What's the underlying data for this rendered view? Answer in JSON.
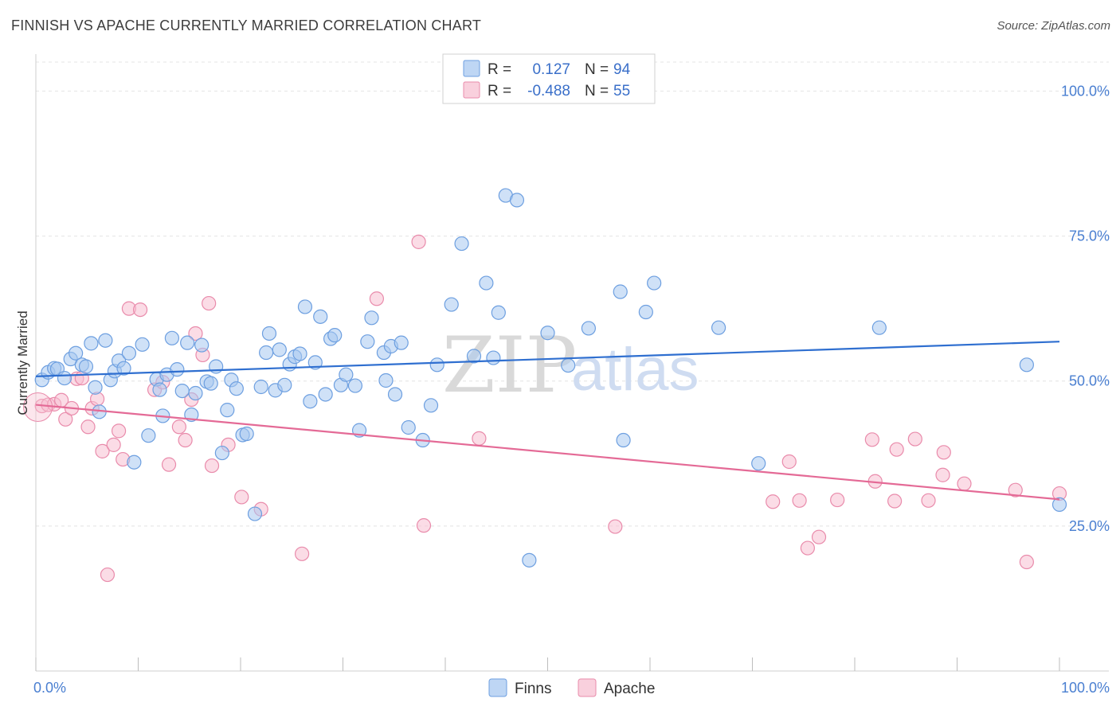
{
  "title": "FINNISH VS APACHE CURRENTLY MARRIED CORRELATION CHART",
  "source": "Source: ZipAtlas.com",
  "watermark": {
    "zip": "ZIP",
    "atlas": "atlas"
  },
  "legend": {
    "r_label": "R =",
    "n_label": "N =",
    "rows": [
      {
        "series": "Finns",
        "r": "0.127",
        "n": "94",
        "color": "#a8c8f0",
        "stroke": "#6d9fe0"
      },
      {
        "series": "Apache",
        "r": "-0.488",
        "n": "55",
        "color": "#f7c0d2",
        "stroke": "#e98bab"
      }
    ]
  },
  "chart_data": {
    "type": "scatter",
    "title": "FINNISH VS APACHE CURRENTLY MARRIED CORRELATION CHART",
    "xlabel": "",
    "ylabel": "Currently Married",
    "xlim": [
      0,
      100
    ],
    "ylim": [
      0,
      105
    ],
    "x_tick_labels": [
      "0.0%",
      "100.0%"
    ],
    "y_ticks": [
      25,
      50,
      75,
      100
    ],
    "y_tick_labels": [
      "25.0%",
      "50.0%",
      "75.0%",
      "100.0%"
    ],
    "grid": true,
    "legend_position": "top-center",
    "series": [
      {
        "name": "Finns",
        "color": "#a8c8f0",
        "stroke": "#6d9fe0",
        "trend": {
          "x": [
            0,
            100
          ],
          "y": [
            50.8,
            56.8
          ],
          "color": "#2f6fd0"
        },
        "points": [
          [
            0.6,
            50.2
          ],
          [
            1.2,
            51.5
          ],
          [
            1.8,
            52.2
          ],
          [
            2.1,
            52.1
          ],
          [
            2.8,
            50.5
          ],
          [
            3.4,
            53.8
          ],
          [
            3.9,
            54.8
          ],
          [
            4.5,
            52.8
          ],
          [
            4.9,
            52.5
          ],
          [
            5.4,
            56.5
          ],
          [
            5.8,
            48.9
          ],
          [
            6.2,
            44.7
          ],
          [
            6.8,
            57.0
          ],
          [
            7.3,
            50.2
          ],
          [
            7.7,
            51.7
          ],
          [
            8.1,
            53.5
          ],
          [
            8.6,
            52.2
          ],
          [
            9.1,
            54.8
          ],
          [
            9.6,
            36.0
          ],
          [
            10.4,
            56.3
          ],
          [
            11.0,
            40.6
          ],
          [
            11.8,
            50.3
          ],
          [
            12.1,
            48.5
          ],
          [
            12.4,
            44.0
          ],
          [
            12.8,
            51.1
          ],
          [
            13.3,
            57.4
          ],
          [
            13.8,
            52.0
          ],
          [
            14.3,
            48.3
          ],
          [
            14.8,
            56.6
          ],
          [
            15.2,
            44.2
          ],
          [
            15.6,
            47.9
          ],
          [
            16.2,
            56.2
          ],
          [
            16.7,
            49.9
          ],
          [
            17.1,
            49.6
          ],
          [
            17.6,
            52.5
          ],
          [
            18.2,
            37.6
          ],
          [
            18.7,
            45.0
          ],
          [
            19.1,
            50.2
          ],
          [
            19.6,
            48.7
          ],
          [
            20.2,
            40.7
          ],
          [
            20.6,
            40.9
          ],
          [
            21.4,
            27.1
          ],
          [
            22.0,
            49.0
          ],
          [
            22.5,
            54.9
          ],
          [
            22.8,
            58.2
          ],
          [
            23.4,
            48.4
          ],
          [
            23.8,
            55.4
          ],
          [
            24.3,
            49.3
          ],
          [
            24.8,
            52.9
          ],
          [
            25.3,
            54.2
          ],
          [
            25.8,
            54.7
          ],
          [
            26.3,
            62.8
          ],
          [
            26.8,
            46.5
          ],
          [
            27.3,
            53.2
          ],
          [
            27.8,
            61.1
          ],
          [
            28.3,
            47.7
          ],
          [
            28.8,
            57.3
          ],
          [
            29.2,
            57.9
          ],
          [
            29.8,
            49.3
          ],
          [
            30.3,
            51.1
          ],
          [
            31.2,
            49.2
          ],
          [
            31.6,
            41.5
          ],
          [
            32.4,
            56.8
          ],
          [
            32.8,
            60.9
          ],
          [
            34.0,
            54.9
          ],
          [
            34.7,
            56.0
          ],
          [
            34.2,
            50.1
          ],
          [
            35.1,
            47.7
          ],
          [
            35.7,
            56.6
          ],
          [
            36.4,
            42.0
          ],
          [
            37.8,
            39.8
          ],
          [
            38.6,
            45.8
          ],
          [
            39.2,
            52.8
          ],
          [
            40.6,
            63.2
          ],
          [
            41.6,
            73.7
          ],
          [
            42.8,
            54.3
          ],
          [
            44.0,
            66.9
          ],
          [
            44.7,
            54.0
          ],
          [
            45.2,
            61.8
          ],
          [
            45.9,
            82.0
          ],
          [
            47.0,
            81.2
          ],
          [
            48.2,
            19.1
          ],
          [
            50.0,
            58.3
          ],
          [
            52.0,
            52.7
          ],
          [
            54.0,
            59.1
          ],
          [
            57.1,
            65.4
          ],
          [
            57.4,
            39.8
          ],
          [
            59.6,
            61.9
          ],
          [
            60.4,
            66.9
          ],
          [
            66.7,
            59.2
          ],
          [
            70.6,
            35.8
          ],
          [
            82.4,
            59.2
          ],
          [
            96.8,
            52.8
          ],
          [
            100.0,
            28.7
          ]
        ]
      },
      {
        "name": "Apache",
        "color": "#f7c0d2",
        "stroke": "#e98bab",
        "trend": {
          "x": [
            0,
            100
          ],
          "y": [
            45.9,
            29.6
          ],
          "color": "#e46a96"
        },
        "points": [
          [
            0.6,
            45.7
          ],
          [
            1.2,
            45.9
          ],
          [
            1.8,
            46.0
          ],
          [
            2.5,
            46.7
          ],
          [
            2.9,
            43.4
          ],
          [
            3.5,
            45.3
          ],
          [
            4.0,
            50.4
          ],
          [
            4.5,
            50.5
          ],
          [
            5.1,
            42.1
          ],
          [
            5.5,
            45.3
          ],
          [
            6.0,
            46.9
          ],
          [
            6.5,
            37.9
          ],
          [
            7.0,
            16.6
          ],
          [
            7.6,
            39.0
          ],
          [
            8.1,
            41.4
          ],
          [
            8.5,
            36.5
          ],
          [
            9.1,
            62.5
          ],
          [
            10.2,
            62.3
          ],
          [
            11.6,
            48.5
          ],
          [
            12.4,
            49.8
          ],
          [
            13.0,
            35.6
          ],
          [
            14.0,
            42.1
          ],
          [
            14.6,
            39.8
          ],
          [
            15.2,
            46.8
          ],
          [
            15.6,
            58.2
          ],
          [
            16.3,
            54.5
          ],
          [
            16.9,
            63.4
          ],
          [
            17.2,
            35.4
          ],
          [
            18.8,
            39.0
          ],
          [
            20.1,
            30.0
          ],
          [
            22.0,
            27.9
          ],
          [
            26.0,
            20.2
          ],
          [
            33.3,
            64.2
          ],
          [
            37.4,
            74.0
          ],
          [
            37.9,
            25.1
          ],
          [
            43.3,
            40.1
          ],
          [
            56.6,
            24.9
          ],
          [
            72.0,
            29.2
          ],
          [
            73.6,
            36.1
          ],
          [
            74.6,
            29.4
          ],
          [
            75.4,
            21.2
          ],
          [
            76.5,
            23.1
          ],
          [
            78.3,
            29.5
          ],
          [
            81.7,
            39.9
          ],
          [
            82.0,
            32.7
          ],
          [
            83.9,
            29.3
          ],
          [
            84.1,
            38.2
          ],
          [
            85.9,
            40.0
          ],
          [
            87.2,
            29.4
          ],
          [
            88.6,
            33.8
          ],
          [
            88.7,
            37.7
          ],
          [
            90.7,
            32.3
          ],
          [
            95.7,
            31.2
          ],
          [
            96.8,
            18.8
          ],
          [
            100.0,
            30.6
          ]
        ]
      }
    ]
  }
}
